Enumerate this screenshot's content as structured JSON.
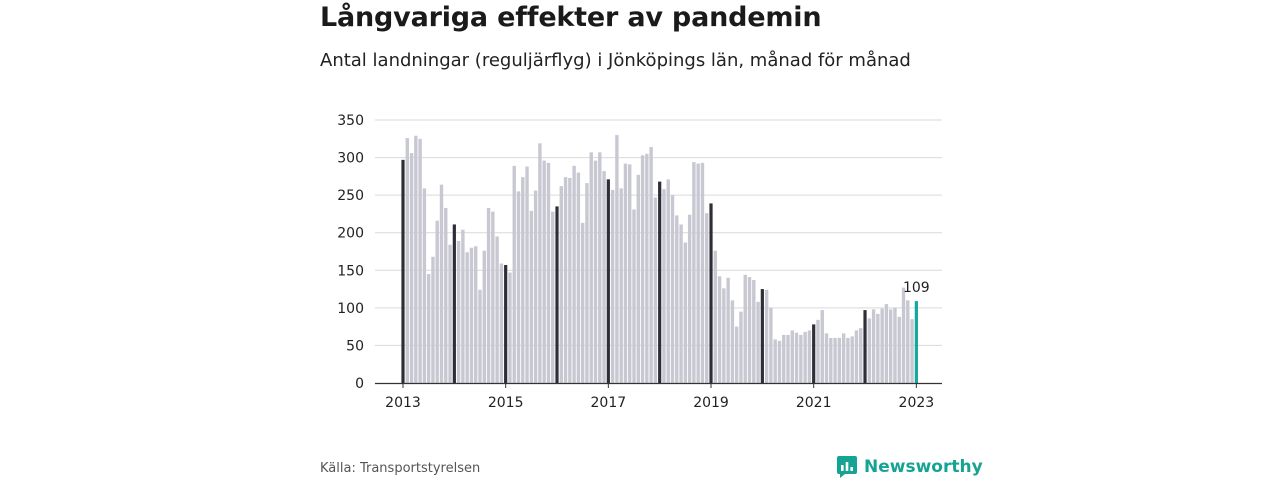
{
  "header": {
    "title": "Långvariga effekter av pandemin",
    "subtitle": "Antal landningar (reguljärflyg) i Jönköpings län, månad för månad"
  },
  "footer": {
    "source": "Källa: Transportstyrelsen",
    "brand": "Newsworthy"
  },
  "colors": {
    "bar": "#c8c8d2",
    "january": "#2e2e38",
    "latest": "#13a89e",
    "grid": "#d9d9d9"
  },
  "chart_data": {
    "type": "bar",
    "title": "Långvariga effekter av pandemin",
    "subtitle": "Antal landningar (reguljärflyg) i Jönköpings län, månad för månad",
    "xlabel": "",
    "ylabel": "",
    "ylim": [
      0,
      350
    ],
    "y_ticks": [
      "0",
      "50",
      "100",
      "150",
      "200",
      "250",
      "300",
      "350"
    ],
    "x_ticks": [
      "2013",
      "2015",
      "2017",
      "2019",
      "2021",
      "2023"
    ],
    "grid": true,
    "start": "2013-01",
    "highlight_label": "109",
    "years": [
      {
        "year": 2013,
        "values": [
          297,
          326,
          306,
          329,
          325,
          259,
          145,
          168,
          216,
          264,
          233,
          184
        ]
      },
      {
        "year": 2014,
        "values": [
          211,
          189,
          204,
          174,
          180,
          182,
          124,
          176,
          233,
          228,
          195,
          159
        ]
      },
      {
        "year": 2015,
        "values": [
          157,
          147,
          289,
          255,
          274,
          288,
          229,
          256,
          319,
          296,
          293,
          228
        ]
      },
      {
        "year": 2016,
        "values": [
          235,
          262,
          274,
          273,
          289,
          280,
          213,
          266,
          307,
          296,
          307,
          282
        ]
      },
      {
        "year": 2017,
        "values": [
          271,
          257,
          330,
          259,
          292,
          291,
          231,
          277,
          303,
          305,
          314,
          247
        ]
      },
      {
        "year": 2018,
        "values": [
          268,
          258,
          271,
          250,
          223,
          211,
          187,
          224,
          294,
          292,
          293,
          226
        ]
      },
      {
        "year": 2019,
        "values": [
          239,
          176,
          142,
          126,
          140,
          110,
          75,
          95,
          144,
          141,
          137,
          108
        ]
      },
      {
        "year": 2020,
        "values": [
          125,
          124,
          100,
          58,
          56,
          64,
          64,
          70,
          67,
          64,
          68,
          70
        ]
      },
      {
        "year": 2021,
        "values": [
          78,
          84,
          97,
          66,
          60,
          60,
          60,
          66,
          60,
          62,
          70,
          73
        ]
      },
      {
        "year": 2022,
        "values": [
          97,
          86,
          98,
          92,
          99,
          105,
          98,
          100,
          88,
          127,
          110,
          85
        ]
      },
      {
        "year": 2023,
        "values": [
          109
        ]
      }
    ]
  }
}
